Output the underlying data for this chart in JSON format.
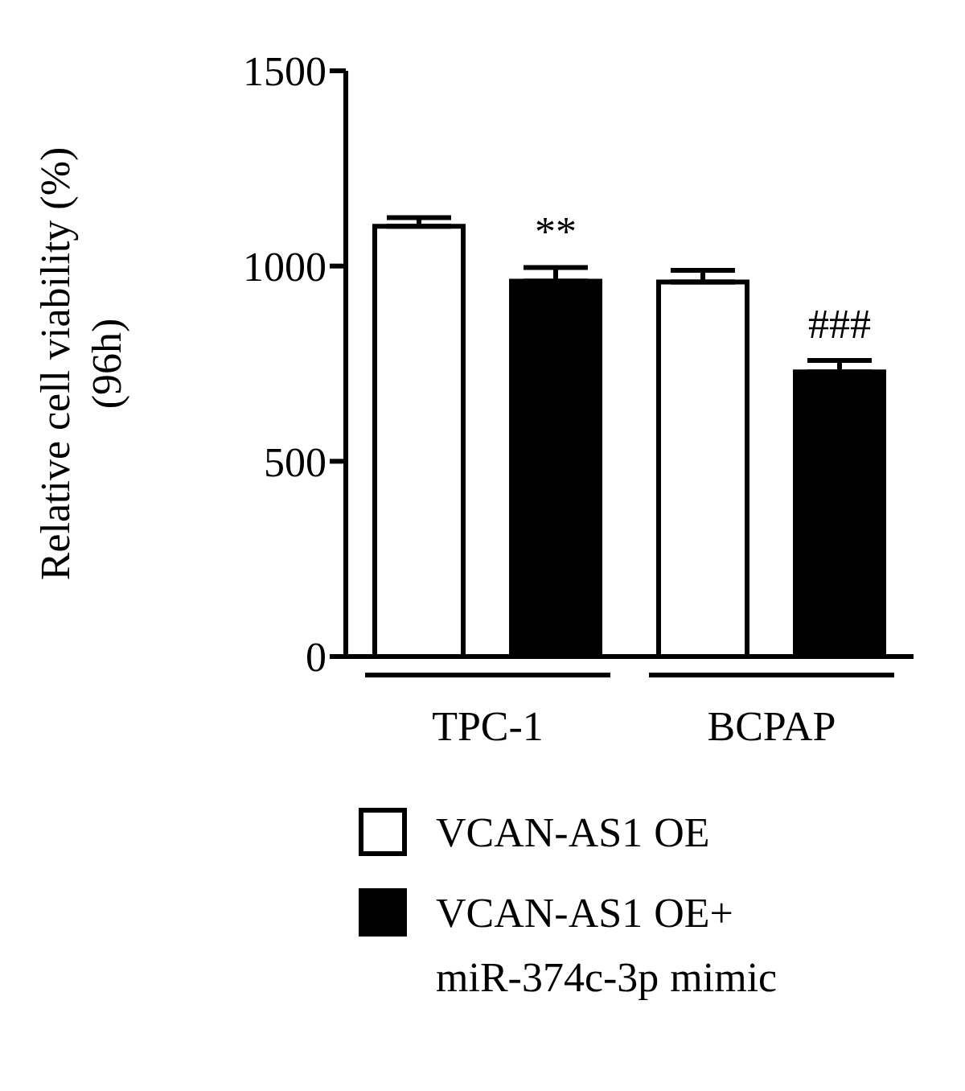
{
  "chart_data": {
    "type": "bar",
    "ylabel": "Relative cell viability (%)\n(96h)",
    "categories": [
      "TPC-1",
      "BCPAP"
    ],
    "series": [
      {
        "name": "VCAN-AS1 OE",
        "color": "#ffffff",
        "values": [
          1102,
          959
        ],
        "errors": [
          22,
          30
        ]
      },
      {
        "name": "VCAN-AS1 OE+ miR-374c-3p mimic",
        "color": "#000000",
        "values": [
          961,
          729
        ],
        "errors": [
          35,
          29
        ]
      }
    ],
    "ylim": [
      0,
      1500
    ],
    "yticks": [
      0,
      500,
      1000,
      1500
    ],
    "legend": "bottom",
    "annotations": [
      "**",
      "###"
    ]
  }
}
